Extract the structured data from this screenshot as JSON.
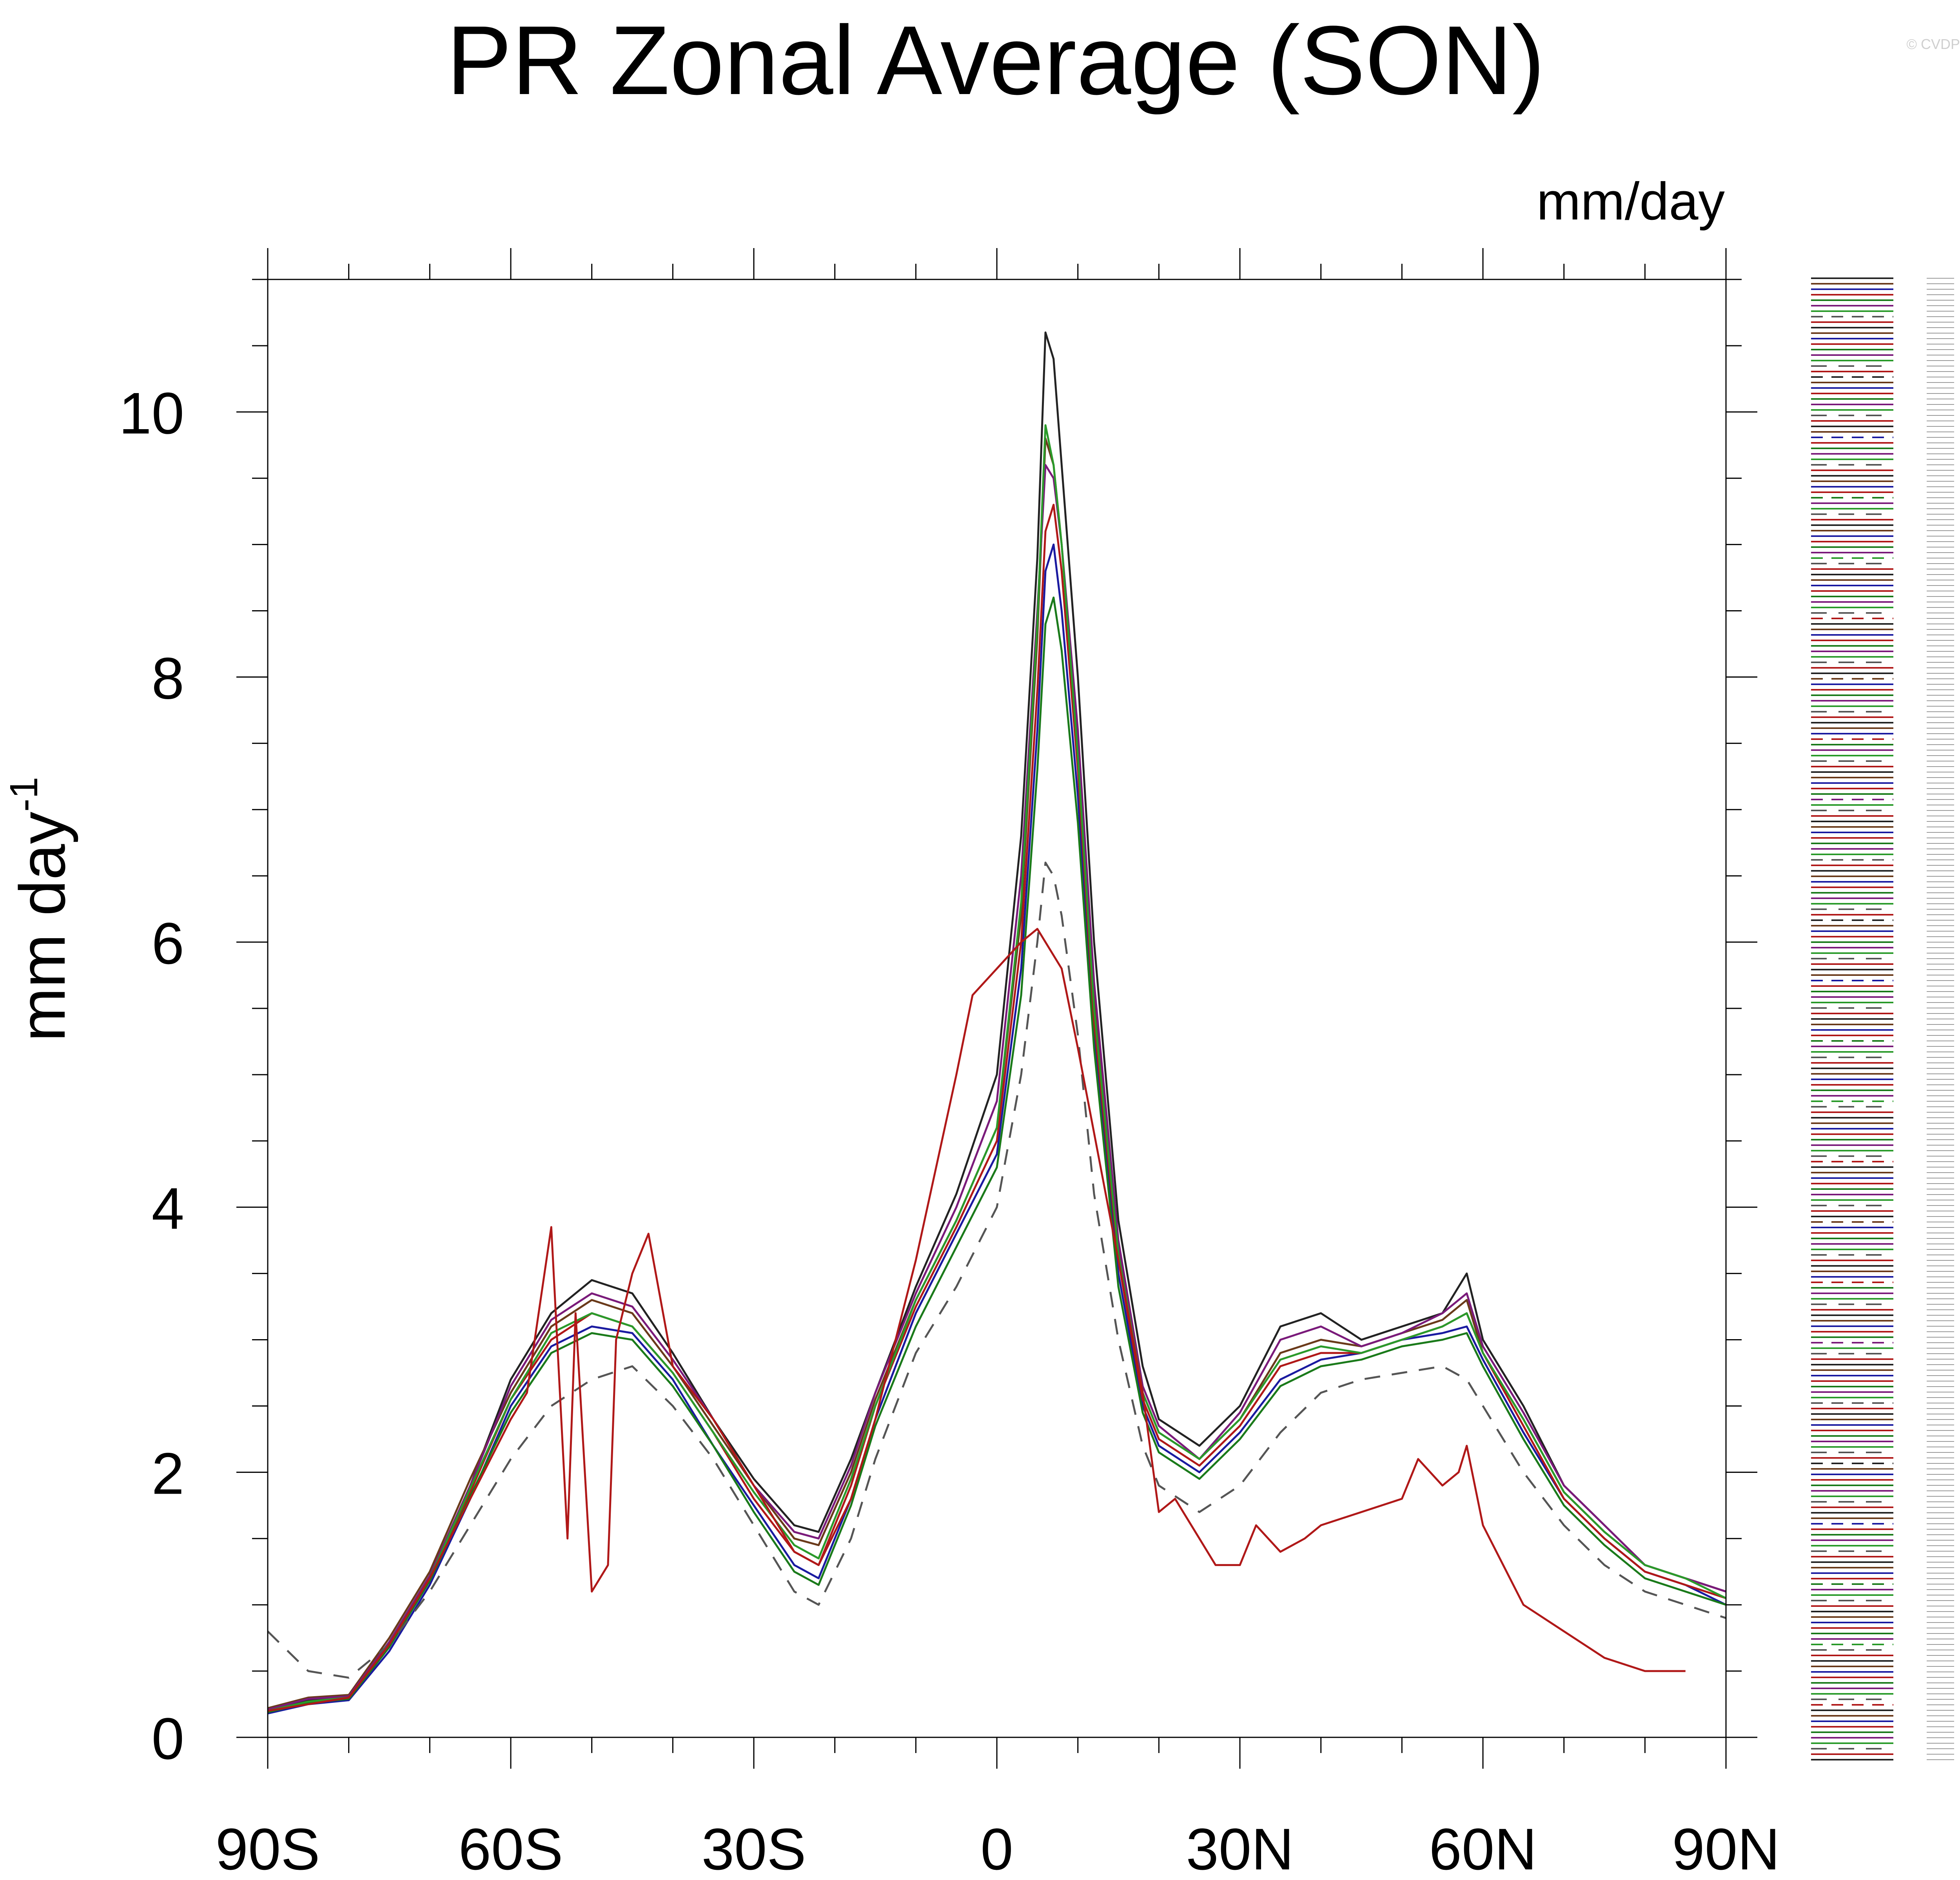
{
  "watermark": "© CVDP",
  "chart_data": {
    "type": "line",
    "title": "PR Zonal Average (SON)",
    "units_label": "mm/day",
    "ylabel": "mm day",
    "ylabel_sup": "-1",
    "xlim": [
      -90,
      90
    ],
    "ylim": [
      0,
      11
    ],
    "x_ticks": [
      {
        "value": -90,
        "label": "90S"
      },
      {
        "value": -60,
        "label": "60S"
      },
      {
        "value": -30,
        "label": "30S"
      },
      {
        "value": 0,
        "label": "0"
      },
      {
        "value": 30,
        "label": "30N"
      },
      {
        "value": 60,
        "label": "60N"
      },
      {
        "value": 90,
        "label": "90N"
      }
    ],
    "y_ticks": [
      {
        "value": 0,
        "label": "0"
      },
      {
        "value": 2,
        "label": "2"
      },
      {
        "value": 4,
        "label": "4"
      },
      {
        "value": 6,
        "label": "6"
      },
      {
        "value": 8,
        "label": "8"
      },
      {
        "value": 10,
        "label": "10"
      }
    ],
    "legend_position": "right",
    "series": [
      {
        "color": "#222222",
        "dash": "",
        "x": [
          -90,
          -85,
          -80,
          -75,
          -70,
          -65,
          -60,
          -55,
          -50,
          -45,
          -40,
          -35,
          -30,
          -25,
          -22,
          -18,
          -15,
          -10,
          -5,
          0,
          3,
          5,
          6,
          7,
          8,
          10,
          12,
          15,
          18,
          20,
          25,
          30,
          35,
          40,
          45,
          50,
          55,
          58,
          60,
          65,
          70,
          75,
          80,
          85,
          90
        ],
        "y": [
          0.2,
          0.28,
          0.3,
          0.7,
          1.2,
          1.9,
          2.7,
          3.2,
          3.45,
          3.35,
          2.9,
          2.4,
          1.95,
          1.6,
          1.55,
          2.1,
          2.6,
          3.4,
          4.1,
          5.0,
          6.8,
          8.9,
          10.6,
          10.4,
          9.6,
          8.0,
          6.0,
          3.9,
          2.8,
          2.4,
          2.2,
          2.5,
          3.1,
          3.2,
          3.0,
          3.1,
          3.2,
          3.5,
          3.0,
          2.5,
          1.9,
          1.6,
          1.3,
          1.2,
          1.1
        ]
      },
      {
        "color": "#6a3a1a",
        "dash": "",
        "x": [
          -90,
          -85,
          -80,
          -75,
          -70,
          -65,
          -60,
          -55,
          -50,
          -45,
          -40,
          -35,
          -30,
          -25,
          -22,
          -18,
          -15,
          -10,
          -5,
          0,
          3,
          5,
          6,
          7,
          8,
          10,
          12,
          15,
          18,
          20,
          25,
          30,
          35,
          40,
          45,
          50,
          55,
          58,
          60,
          65,
          70,
          75,
          80,
          85,
          90
        ],
        "y": [
          0.22,
          0.3,
          0.32,
          0.75,
          1.25,
          1.95,
          2.6,
          3.1,
          3.3,
          3.2,
          2.8,
          2.35,
          1.9,
          1.5,
          1.45,
          2.0,
          2.55,
          3.3,
          3.9,
          4.6,
          6.2,
          8.3,
          9.8,
          9.6,
          9.0,
          7.5,
          5.6,
          3.7,
          2.6,
          2.3,
          2.1,
          2.4,
          2.9,
          3.0,
          2.95,
          3.05,
          3.15,
          3.3,
          2.9,
          2.4,
          1.85,
          1.55,
          1.3,
          1.2,
          1.1
        ]
      },
      {
        "color": "#1a1aa0",
        "dash": "",
        "x": [
          -90,
          -85,
          -80,
          -75,
          -70,
          -65,
          -60,
          -55,
          -50,
          -45,
          -40,
          -35,
          -30,
          -25,
          -22,
          -18,
          -15,
          -10,
          -5,
          0,
          3,
          5,
          6,
          7,
          8,
          10,
          12,
          15,
          18,
          20,
          25,
          30,
          35,
          40,
          45,
          50,
          55,
          58,
          60,
          65,
          70,
          75,
          80,
          85,
          90
        ],
        "y": [
          0.18,
          0.25,
          0.28,
          0.65,
          1.15,
          1.8,
          2.5,
          2.95,
          3.1,
          3.05,
          2.7,
          2.2,
          1.75,
          1.3,
          1.2,
          1.8,
          2.4,
          3.2,
          3.8,
          4.4,
          5.8,
          7.6,
          8.8,
          9.0,
          8.5,
          7.1,
          5.3,
          3.5,
          2.5,
          2.2,
          2.0,
          2.3,
          2.7,
          2.85,
          2.9,
          3.0,
          3.05,
          3.1,
          2.85,
          2.3,
          1.8,
          1.5,
          1.25,
          1.15,
          1.0
        ]
      },
      {
        "color": "#b01818",
        "dash": "",
        "x": [
          -90,
          -85,
          -80,
          -75,
          -70,
          -65,
          -60,
          -55,
          -50,
          -45,
          -40,
          -35,
          -30,
          -25,
          -22,
          -18,
          -15,
          -10,
          -5,
          0,
          3,
          5,
          6,
          7,
          8,
          10,
          12,
          15,
          18,
          20,
          25,
          30,
          35,
          40,
          45,
          50,
          55,
          58,
          60,
          65,
          70,
          75,
          80,
          85,
          90
        ],
        "y": [
          0.2,
          0.27,
          0.3,
          0.7,
          1.2,
          1.85,
          2.55,
          3.0,
          3.2,
          3.1,
          2.75,
          2.3,
          1.8,
          1.4,
          1.3,
          1.9,
          2.5,
          3.25,
          3.85,
          4.5,
          6.0,
          7.9,
          9.1,
          9.3,
          8.8,
          7.3,
          5.4,
          3.6,
          2.55,
          2.25,
          2.05,
          2.35,
          2.8,
          2.9,
          2.9,
          3.0,
          3.1,
          3.2,
          2.9,
          2.35,
          1.8,
          1.5,
          1.25,
          1.15,
          1.05
        ]
      },
      {
        "color": "#1a7a1a",
        "dash": "",
        "x": [
          -90,
          -85,
          -80,
          -75,
          -70,
          -65,
          -60,
          -55,
          -50,
          -45,
          -40,
          -35,
          -30,
          -25,
          -22,
          -18,
          -15,
          -10,
          -5,
          0,
          3,
          5,
          6,
          7,
          8,
          10,
          12,
          15,
          18,
          20,
          25,
          30,
          35,
          40,
          45,
          50,
          55,
          58,
          60,
          65,
          70,
          75,
          80,
          85,
          90
        ],
        "y": [
          0.19,
          0.26,
          0.29,
          0.68,
          1.18,
          1.82,
          2.45,
          2.9,
          3.05,
          3.0,
          2.65,
          2.2,
          1.7,
          1.25,
          1.15,
          1.75,
          2.35,
          3.1,
          3.7,
          4.3,
          5.6,
          7.3,
          8.4,
          8.6,
          8.2,
          6.9,
          5.2,
          3.4,
          2.45,
          2.15,
          1.95,
          2.25,
          2.65,
          2.8,
          2.85,
          2.95,
          3.0,
          3.05,
          2.8,
          2.25,
          1.75,
          1.45,
          1.2,
          1.1,
          1.0
        ]
      },
      {
        "color": "#7a1a7a",
        "dash": "",
        "x": [
          -90,
          -85,
          -80,
          -75,
          -70,
          -65,
          -60,
          -55,
          -50,
          -45,
          -40,
          -35,
          -30,
          -25,
          -22,
          -18,
          -15,
          -10,
          -5,
          0,
          3,
          5,
          6,
          7,
          8,
          10,
          12,
          15,
          18,
          20,
          25,
          30,
          35,
          40,
          45,
          50,
          55,
          58,
          60,
          65,
          70,
          75,
          80,
          85,
          90
        ],
        "y": [
          0.21,
          0.29,
          0.31,
          0.72,
          1.22,
          1.9,
          2.65,
          3.15,
          3.35,
          3.25,
          2.85,
          2.4,
          1.9,
          1.55,
          1.5,
          2.05,
          2.6,
          3.35,
          4.0,
          4.8,
          6.5,
          8.5,
          9.6,
          9.5,
          9.0,
          7.6,
          5.7,
          3.75,
          2.65,
          2.35,
          2.1,
          2.45,
          3.0,
          3.1,
          2.95,
          3.05,
          3.2,
          3.35,
          2.95,
          2.45,
          1.9,
          1.6,
          1.3,
          1.2,
          1.1
        ]
      },
      {
        "color": "#2a9a2a",
        "dash": "",
        "x": [
          -90,
          -85,
          -80,
          -75,
          -70,
          -65,
          -60,
          -55,
          -50,
          -45,
          -40,
          -35,
          -30,
          -25,
          -22,
          -18,
          -15,
          -10,
          -5,
          0,
          3,
          5,
          6,
          7,
          8,
          10,
          12,
          15,
          18,
          20,
          25,
          30,
          35,
          40,
          45,
          50,
          55,
          58,
          60,
          65,
          70,
          75,
          80,
          85,
          90
        ],
        "y": [
          0.2,
          0.27,
          0.3,
          0.7,
          1.2,
          1.88,
          2.55,
          3.05,
          3.2,
          3.1,
          2.75,
          2.3,
          1.85,
          1.45,
          1.35,
          1.95,
          2.5,
          3.3,
          3.9,
          4.6,
          6.3,
          8.4,
          9.9,
          9.6,
          9.0,
          7.4,
          5.5,
          3.65,
          2.6,
          2.3,
          2.1,
          2.4,
          2.85,
          2.95,
          2.9,
          3.0,
          3.1,
          3.2,
          2.9,
          2.4,
          1.85,
          1.55,
          1.3,
          1.2,
          1.05
        ]
      },
      {
        "color": "#555555",
        "dash": "40,30",
        "x": [
          -90,
          -85,
          -80,
          -75,
          -70,
          -65,
          -60,
          -55,
          -50,
          -45,
          -40,
          -35,
          -30,
          -25,
          -22,
          -18,
          -15,
          -10,
          -5,
          0,
          3,
          5,
          6,
          7,
          8,
          10,
          12,
          15,
          18,
          20,
          25,
          30,
          35,
          40,
          45,
          50,
          55,
          58,
          60,
          65,
          70,
          75,
          80,
          85,
          90
        ],
        "y": [
          0.8,
          0.5,
          0.45,
          0.7,
          1.1,
          1.6,
          2.1,
          2.5,
          2.7,
          2.8,
          2.5,
          2.1,
          1.6,
          1.1,
          1.0,
          1.5,
          2.1,
          2.9,
          3.4,
          4.0,
          5.0,
          6.0,
          6.6,
          6.5,
          6.2,
          5.3,
          4.1,
          3.0,
          2.2,
          1.9,
          1.7,
          1.9,
          2.3,
          2.6,
          2.7,
          2.75,
          2.8,
          2.7,
          2.5,
          2.0,
          1.6,
          1.3,
          1.1,
          1.0,
          0.9
        ]
      },
      {
        "color": "#b01818",
        "dash": "",
        "x": [
          -90,
          -85,
          -80,
          -75,
          -70,
          -65,
          -60,
          -58,
          -55,
          -53,
          -52,
          -50,
          -48,
          -47,
          -45,
          -43,
          -40,
          -35,
          -30,
          -25,
          -22,
          -18,
          -15,
          -10,
          -5,
          -3,
          0,
          3,
          5,
          8,
          10,
          15,
          18,
          20,
          22,
          25,
          27,
          30,
          32,
          35,
          38,
          40,
          45,
          50,
          52,
          55,
          57,
          58,
          60,
          65,
          70,
          75,
          80,
          85
        ],
        "y": [
          0.2,
          0.25,
          0.3,
          0.7,
          1.2,
          1.8,
          2.4,
          2.6,
          3.85,
          1.5,
          3.2,
          1.1,
          1.3,
          3.0,
          3.5,
          3.8,
          2.8,
          2.4,
          1.9,
          1.4,
          1.3,
          1.8,
          2.4,
          3.6,
          5.0,
          5.6,
          5.8,
          6.0,
          6.1,
          5.8,
          5.2,
          3.6,
          2.6,
          1.7,
          1.8,
          1.5,
          1.3,
          1.3,
          1.6,
          1.4,
          1.5,
          1.6,
          1.7,
          1.8,
          2.1,
          1.9,
          2.0,
          2.2,
          1.6,
          1.0,
          0.8,
          0.6,
          0.5,
          0.5
        ]
      }
    ]
  }
}
